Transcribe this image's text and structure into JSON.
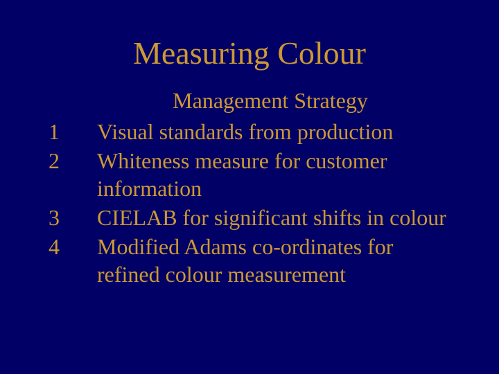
{
  "colors": {
    "background": "#000066",
    "text": "#cc9933"
  },
  "typography": {
    "font_family": "Times New Roman",
    "title_fontsize": 46,
    "body_fontsize": 32
  },
  "slide": {
    "title": "Measuring Colour",
    "subtitle": "Management Strategy",
    "items": [
      {
        "num": "1",
        "text": "Visual standards from production"
      },
      {
        "num": "2",
        "text": "Whiteness measure for customer information"
      },
      {
        "num": "3",
        "text": "CIELAB for significant shifts in colour"
      },
      {
        "num": "4",
        "text": "Modified Adams co-ordinates for refined colour measurement"
      }
    ]
  }
}
